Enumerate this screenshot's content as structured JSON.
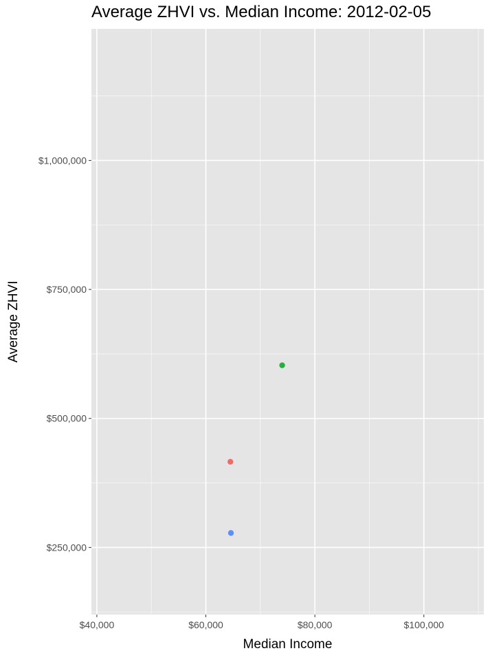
{
  "chart_data": {
    "type": "scatter",
    "title": "Average ZHVI vs. Median Income: 2012-02-05",
    "xlabel": "Median Income",
    "ylabel": "Average ZHVI",
    "xlim": [
      39000,
      111000
    ],
    "ylim": [
      120000,
      1255000
    ],
    "x_ticks": [
      40000,
      60000,
      80000,
      100000
    ],
    "x_tick_labels": [
      "$40,000",
      "$60,000",
      "$80,000",
      "$100,000"
    ],
    "x_minor_ticks": [
      50000,
      70000,
      90000,
      110000
    ],
    "y_ticks": [
      250000,
      500000,
      750000,
      1000000
    ],
    "y_tick_labels": [
      "$250,000",
      "$500,000",
      "$750,000",
      "$1,000,000"
    ],
    "y_minor_ticks": [
      125000,
      375000,
      625000,
      875000,
      1125000
    ],
    "grid": true,
    "panel_background": "#e5e5e5",
    "grid_color": "#ffffff",
    "points": [
      {
        "x": 74000,
        "y": 603000,
        "color": "#27ae3b"
      },
      {
        "x": 64500,
        "y": 416000,
        "color": "#f06a68"
      },
      {
        "x": 64600,
        "y": 278000,
        "color": "#5b8ff9"
      }
    ]
  }
}
